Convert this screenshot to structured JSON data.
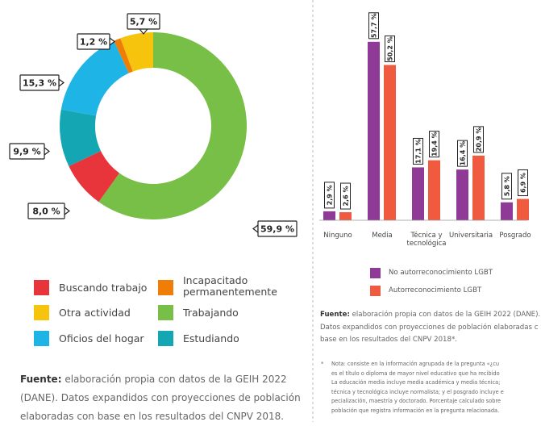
{
  "chart_data": [
    {
      "type": "donut",
      "categories": [
        "Trabajando",
        "Buscando trabajo",
        "Estudiando",
        "Oficios del hogar",
        "Incapacitado permanentemente",
        "Otra actividad"
      ],
      "values": [
        59.9,
        8.0,
        9.9,
        15.3,
        1.2,
        5.7
      ],
      "value_labels": [
        "59,9 %",
        "8,0 %",
        "9,9 %",
        "15,3 %",
        "1,2 %",
        "5,7 %"
      ],
      "colors": [
        "#77bf47",
        "#e8353b",
        "#14a7b3",
        "#1eb4e6",
        "#f07d05",
        "#f6c40d"
      ]
    },
    {
      "type": "bar",
      "categories": [
        "Ninguno",
        "Media",
        "Técnica y tecnológica",
        "Universitaria",
        "Posgrado"
      ],
      "ylim": [
        0,
        60
      ],
      "series": [
        {
          "name": "No autorreconocimiento LGBT",
          "color": "#8f3a96",
          "values": [
            2.9,
            57.7,
            17.1,
            16.4,
            5.8
          ],
          "value_labels": [
            "2,9 %",
            "57,7 %",
            "17,1 %",
            "16,4 %",
            "5,8 %"
          ]
        },
        {
          "name": "Autorreconocimiento LGBT",
          "color": "#f05a3e",
          "values": [
            2.6,
            50.2,
            19.4,
            20.9,
            6.9
          ],
          "value_labels": [
            "2,6 %",
            "50,2 %",
            "19,4 %",
            "20,9 %",
            "6,9 %"
          ]
        }
      ]
    }
  ],
  "left_source": {
    "label": "Fuente:",
    "text": "elaboración propia con datos de la GEIH 2022 (DANE). Datos expandidos con proyecciones de población elaboradas con base en los resultados del CNPV 2018."
  },
  "right_source": {
    "label": "Fuente:",
    "lines": [
      "elaboración propia con datos de la GEIH 2022 (DANE).",
      "Datos expandidos con proyecciones de población elaboradas c",
      "base en los resultados del CNPV 2018*."
    ]
  },
  "footnote": {
    "marker": "*",
    "lines": [
      "Nota: consiste en la información agrupada de la pregunta «¿cu",
      "es el título o diploma de mayor nivel educativo que ha recibido",
      "La educación media incluye media académica y media técnica;",
      "técnica y tecnológica incluye normalista; y el posgrado incluye e",
      "pecialización, maestría y doctorado. Porcentaje calculado sobre",
      "población que registra información en la pregunta relacionada."
    ]
  }
}
